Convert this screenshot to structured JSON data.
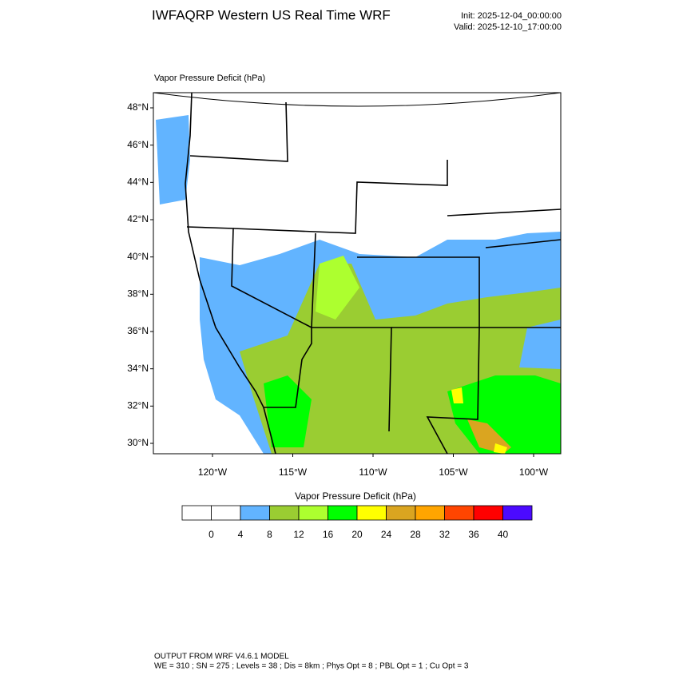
{
  "header": {
    "title": "IWFAQRP Western US Real Time WRF",
    "init": "Init: 2025-12-04_00:00:00",
    "valid": "Valid: 2025-12-10_17:00:00"
  },
  "map": {
    "field_label": "Vapor Pressure Deficit   (hPa)",
    "lat_ticks": [
      "48°N",
      "46°N",
      "44°N",
      "42°N",
      "40°N",
      "38°N",
      "36°N",
      "34°N",
      "32°N",
      "30°N"
    ],
    "lon_ticks": [
      "120°W",
      "115°W",
      "110°W",
      "105°W",
      "100°W"
    ]
  },
  "colorbar": {
    "title": "Vapor Pressure Deficit  (hPa)",
    "colors": [
      "#ffffff",
      "#ffffff",
      "#62b4ff",
      "#9acd32",
      "#adff2f",
      "#00ff00",
      "#ffff00",
      "#daa520",
      "#ffa500",
      "#ff4500",
      "#ff0000",
      "#4b0aff"
    ],
    "labels": [
      0,
      4,
      8,
      12,
      16,
      20,
      24,
      28,
      32,
      36,
      40
    ]
  },
  "footer": {
    "line1": "OUTPUT FROM WRF V4.6.1 MODEL",
    "line2": "WE = 310 ; SN = 275 ; Levels = 38 ; Dis = 8km ; Phys Opt = 8 ; PBL Opt = 1 ; Cu Opt = 3"
  }
}
